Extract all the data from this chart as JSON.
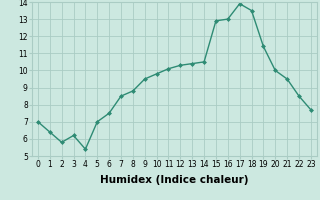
{
  "x": [
    0,
    1,
    2,
    3,
    4,
    5,
    6,
    7,
    8,
    9,
    10,
    11,
    12,
    13,
    14,
    15,
    16,
    17,
    18,
    19,
    20,
    21,
    22,
    23
  ],
  "y": [
    7.0,
    6.4,
    5.8,
    6.2,
    5.4,
    7.0,
    7.5,
    8.5,
    8.8,
    9.5,
    9.8,
    10.1,
    10.3,
    10.4,
    10.5,
    12.9,
    13.0,
    13.9,
    13.5,
    11.4,
    10.0,
    9.5,
    8.5,
    7.7
  ],
  "line_color": "#2e8b74",
  "marker": "D",
  "marker_size": 2.0,
  "line_width": 1.0,
  "bg_color": "#cce8e0",
  "grid_color": "#aaccc4",
  "xlabel": "Humidex (Indice chaleur)",
  "xlabel_fontsize": 7.5,
  "xlabel_fontweight": "bold",
  "xlim": [
    -0.5,
    23.5
  ],
  "ylim": [
    5,
    14
  ],
  "yticks": [
    5,
    6,
    7,
    8,
    9,
    10,
    11,
    12,
    13,
    14
  ],
  "xticks": [
    0,
    1,
    2,
    3,
    4,
    5,
    6,
    7,
    8,
    9,
    10,
    11,
    12,
    13,
    14,
    15,
    16,
    17,
    18,
    19,
    20,
    21,
    22,
    23
  ],
  "tick_fontsize": 5.5
}
